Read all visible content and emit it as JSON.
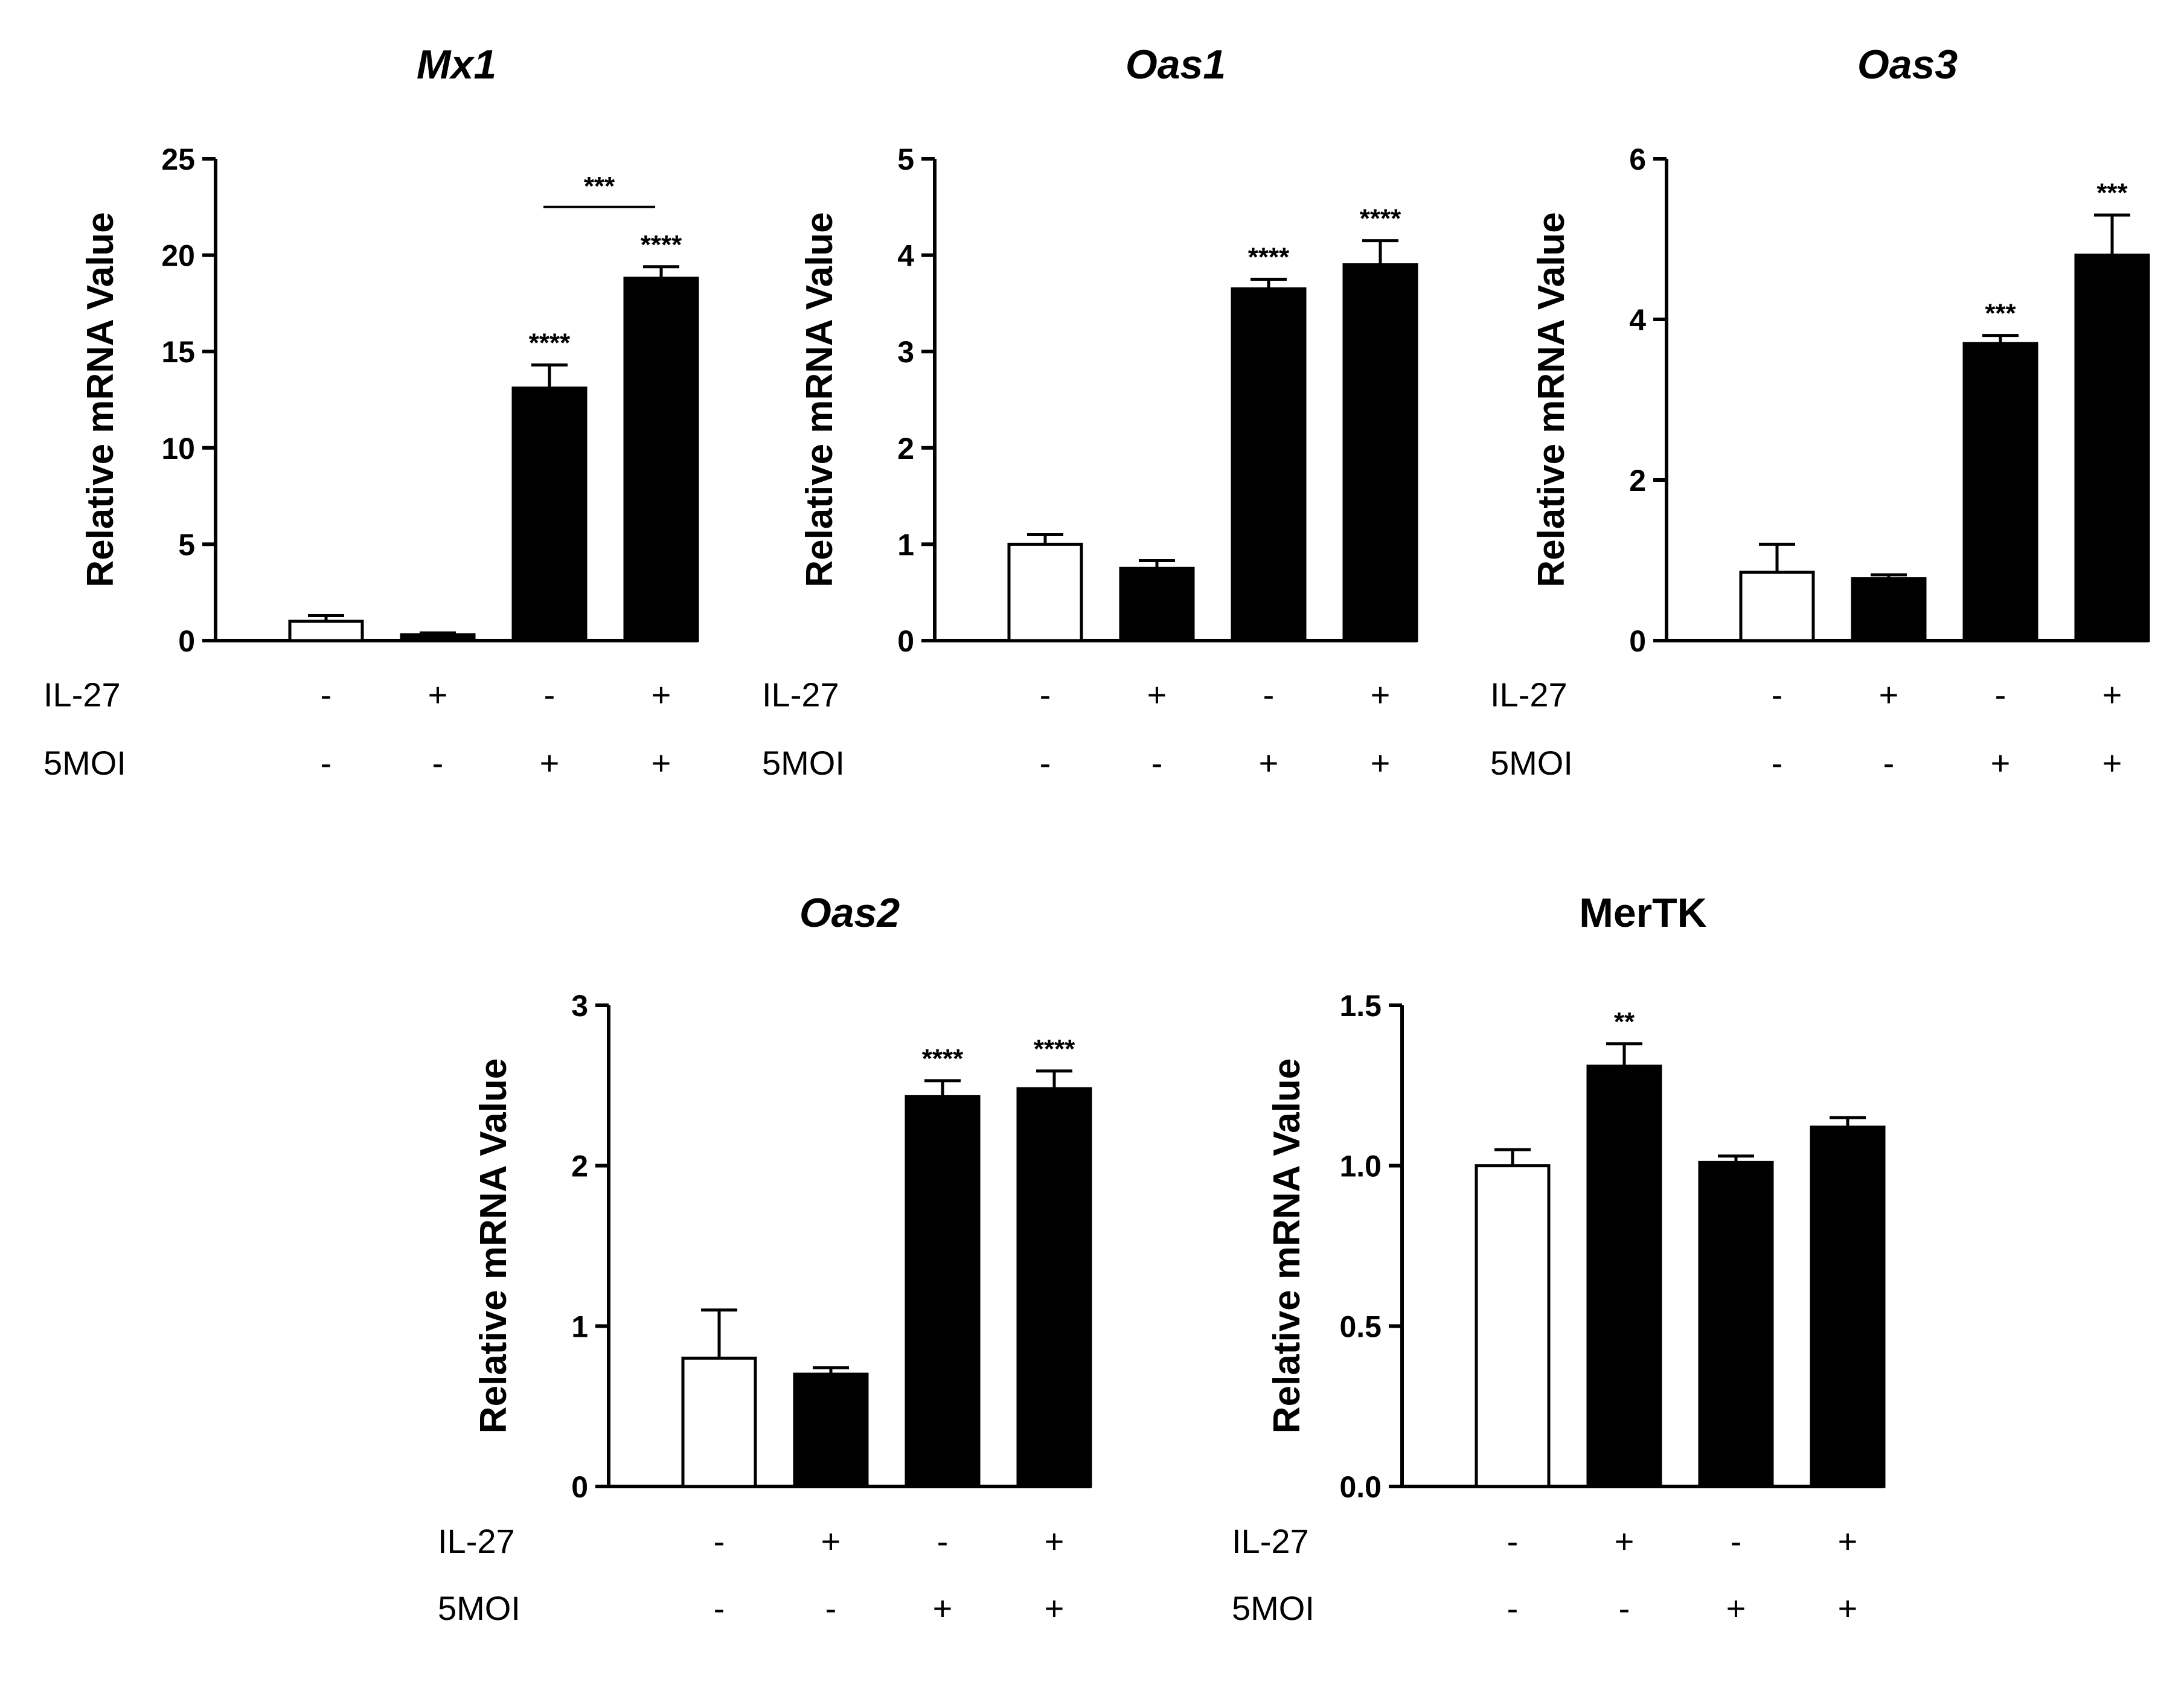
{
  "chart_data": [
    {
      "type": "bar",
      "title": "Mx1",
      "title_italic": true,
      "ylabel": "Relative mRNA Value",
      "ylim": [
        0,
        25
      ],
      "yticks": [
        "0",
        "5",
        "10",
        "15",
        "20",
        "25"
      ],
      "ytick_values": [
        0,
        5,
        10,
        15,
        20,
        25
      ],
      "conditions": [
        {
          "label": "IL-27",
          "values": [
            "-",
            "+",
            "-",
            "+"
          ]
        },
        {
          "label": "5MOI",
          "values": [
            "-",
            "-",
            "+",
            "+"
          ]
        }
      ],
      "values": [
        1.0,
        0.3,
        13.1,
        18.8
      ],
      "errors": [
        0.3,
        0.1,
        1.2,
        0.6
      ],
      "fills": [
        "#ffffff",
        "#000000",
        "#000000",
        "#000000"
      ],
      "significance": [
        "",
        "",
        "****",
        "****"
      ],
      "brackets": [
        {
          "from": 2,
          "to": 3,
          "value": 22.5,
          "label": "***"
        }
      ]
    },
    {
      "type": "bar",
      "title": "Oas1",
      "title_italic": true,
      "ylabel": "Relative mRNA Value",
      "ylim": [
        0,
        5
      ],
      "yticks": [
        "0",
        "1",
        "2",
        "3",
        "4",
        "5"
      ],
      "ytick_values": [
        0,
        1,
        2,
        3,
        4,
        5
      ],
      "conditions": [
        {
          "label": "IL-27",
          "values": [
            "-",
            "+",
            "-",
            "+"
          ]
        },
        {
          "label": "5MOI",
          "values": [
            "-",
            "-",
            "+",
            "+"
          ]
        }
      ],
      "values": [
        1.0,
        0.75,
        3.65,
        3.9
      ],
      "errors": [
        0.1,
        0.08,
        0.1,
        0.25
      ],
      "fills": [
        "#ffffff",
        "#000000",
        "#000000",
        "#000000"
      ],
      "significance": [
        "",
        "",
        "****",
        "****"
      ],
      "brackets": []
    },
    {
      "type": "bar",
      "title": "Oas3",
      "title_italic": true,
      "ylabel": "Relative mRNA Value",
      "ylim": [
        0,
        6
      ],
      "yticks": [
        "0",
        "2",
        "4",
        "6"
      ],
      "ytick_values": [
        0,
        2,
        4,
        6
      ],
      "conditions": [
        {
          "label": "IL-27",
          "values": [
            "-",
            "+",
            "-",
            "+"
          ]
        },
        {
          "label": "5MOI",
          "values": [
            "-",
            "-",
            "+",
            "+"
          ]
        }
      ],
      "values": [
        0.85,
        0.77,
        3.7,
        4.8
      ],
      "errors": [
        0.35,
        0.05,
        0.1,
        0.5
      ],
      "fills": [
        "#ffffff",
        "#000000",
        "#000000",
        "#000000"
      ],
      "significance": [
        "",
        "",
        "***",
        "***"
      ],
      "brackets": []
    },
    {
      "type": "bar",
      "title": "Oas2",
      "title_italic": true,
      "ylabel": "Relative mRNA Value",
      "ylim": [
        0,
        3
      ],
      "yticks": [
        "0",
        "1",
        "2",
        "3"
      ],
      "ytick_values": [
        0,
        1,
        2,
        3
      ],
      "conditions": [
        {
          "label": "IL-27",
          "values": [
            "-",
            "+",
            "-",
            "+"
          ]
        },
        {
          "label": "5MOI",
          "values": [
            "-",
            "-",
            "+",
            "+"
          ]
        }
      ],
      "values": [
        0.8,
        0.7,
        2.43,
        2.48
      ],
      "errors": [
        0.3,
        0.04,
        0.1,
        0.11
      ],
      "fills": [
        "#ffffff",
        "#000000",
        "#000000",
        "#000000"
      ],
      "significance": [
        "",
        "",
        "****",
        "****"
      ],
      "brackets": []
    },
    {
      "type": "bar",
      "title": "MerTK",
      "title_italic": false,
      "ylabel": "Relative mRNA Value",
      "ylim": [
        0,
        1.5
      ],
      "yticks": [
        "0.0",
        "0.5",
        "1.0",
        "1.5"
      ],
      "ytick_values": [
        0,
        0.5,
        1.0,
        1.5
      ],
      "conditions": [
        {
          "label": "IL-27",
          "values": [
            "-",
            "+",
            "-",
            "+"
          ]
        },
        {
          "label": "5MOI",
          "values": [
            "-",
            "-",
            "+",
            "+"
          ]
        }
      ],
      "values": [
        1.0,
        1.31,
        1.01,
        1.12
      ],
      "errors": [
        0.05,
        0.07,
        0.02,
        0.03
      ],
      "fills": [
        "#ffffff",
        "#000000",
        "#000000",
        "#000000"
      ],
      "significance": [
        "",
        "**",
        "",
        ""
      ],
      "brackets": []
    }
  ]
}
